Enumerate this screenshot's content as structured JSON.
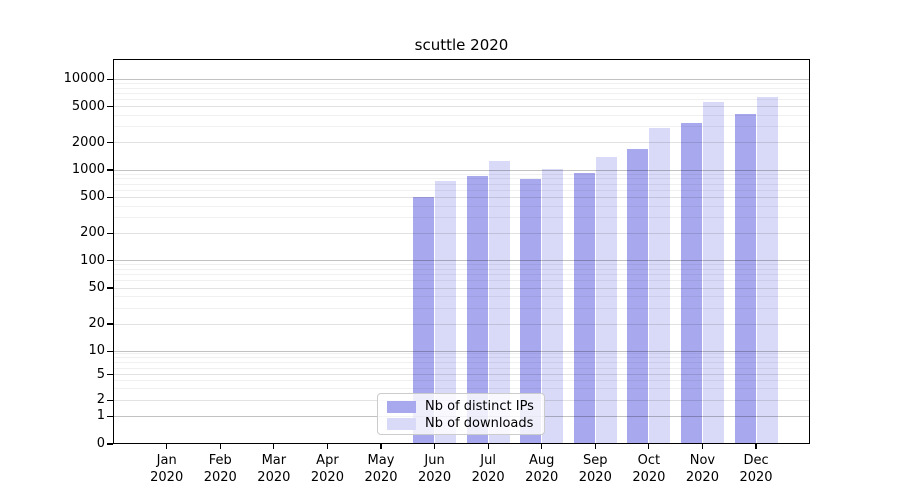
{
  "title": "scuttle 2020",
  "colors": {
    "distinct_ips": "#a8a8ee",
    "downloads": "#d9d9f8",
    "spine": "#000000",
    "grid_major": "#c8c8c8",
    "grid_mid": "#e2e2e2",
    "grid_minor": "#efefef"
  },
  "legend": {
    "entries": [
      {
        "key": "ips",
        "label": "Nb of distinct IPs",
        "color": "#a8a8ee"
      },
      {
        "key": "downloads",
        "label": "Nb of downloads",
        "color": "#d9d9f8"
      }
    ]
  },
  "axes": {
    "y_tick_labels": [
      "0",
      "1",
      "2",
      "5",
      "10",
      "20",
      "50",
      "100",
      "200",
      "500",
      "1000",
      "2000",
      "5000",
      "10000"
    ],
    "x_tick_year": "2020"
  },
  "chart_data": {
    "type": "bar",
    "title": "scuttle 2020",
    "categories": [
      "Jan",
      "Feb",
      "Mar",
      "Apr",
      "May",
      "Jun",
      "Jul",
      "Aug",
      "Sep",
      "Oct",
      "Nov",
      "Dec"
    ],
    "category_year": "2020",
    "series": [
      {
        "key": "ips",
        "name": "Nb of distinct IPs",
        "color": "#a8a8ee",
        "values": [
          0,
          0,
          0,
          0,
          0,
          505,
          860,
          790,
          925,
          1700,
          3270,
          4100
        ]
      },
      {
        "key": "downloads",
        "name": "Nb of downloads",
        "color": "#d9d9f8",
        "values": [
          0,
          0,
          0,
          0,
          0,
          760,
          1260,
          1030,
          1390,
          2900,
          5660,
          6450
        ]
      }
    ],
    "y_ticks": [
      0,
      1,
      2,
      5,
      10,
      20,
      50,
      100,
      200,
      500,
      1000,
      2000,
      5000,
      10000
    ],
    "yscale": "symlog",
    "ylim": [
      0,
      16000
    ],
    "grid": "both",
    "legend_position": "lower center"
  }
}
